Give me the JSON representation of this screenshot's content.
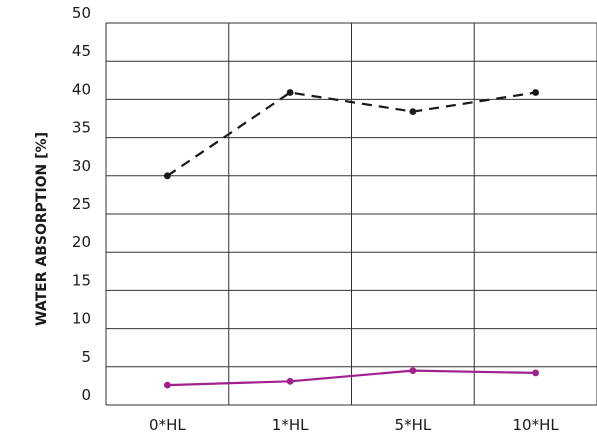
{
  "chart_data": {
    "type": "line",
    "title": "",
    "xlabel": "",
    "ylabel": "WATER ABSORPTION [%]",
    "categories": [
      "0*HL",
      "1*HL",
      "5*HL",
      "10*HL"
    ],
    "ylim": [
      0,
      50
    ],
    "yticks": [
      0,
      5,
      10,
      15,
      20,
      25,
      30,
      35,
      40,
      45,
      50
    ],
    "grid": true,
    "legend": "none",
    "series": [
      {
        "values": [
          30.0,
          40.9,
          38.4,
          40.9
        ],
        "color": "#1a1a1a",
        "line_style": "dashed",
        "marker": "circle"
      },
      {
        "values": [
          2.6,
          3.1,
          4.5,
          4.2
        ],
        "color": "#a0208e",
        "line_style": "solid",
        "marker": "circle"
      }
    ]
  }
}
